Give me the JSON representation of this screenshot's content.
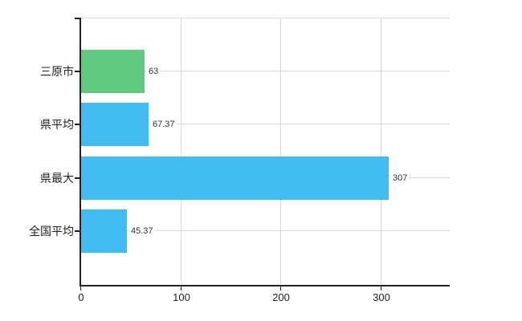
{
  "chart_data": {
    "type": "bar",
    "orientation": "horizontal",
    "title": "",
    "xlabel": "",
    "ylabel": "",
    "categories": [
      "三原市",
      "県平均",
      "県最大",
      "全国平均"
    ],
    "values": [
      63,
      67.37,
      307,
      45.37
    ],
    "value_labels": [
      "63",
      "67.37",
      "307",
      "45.37"
    ],
    "bar_colors": [
      "#61c87f",
      "#41bcee",
      "#41bcee",
      "#41bcee"
    ],
    "x_ticks": [
      0,
      100,
      200,
      300
    ],
    "xlim": [
      0,
      368
    ],
    "grid": true,
    "legend": false
  },
  "colors": {
    "bar_green": "#61c87f",
    "bar_blue": "#41bcee",
    "gridline": "#d9d9d9",
    "axis": "#222222",
    "text": "#222222",
    "background": "#ffffff"
  }
}
